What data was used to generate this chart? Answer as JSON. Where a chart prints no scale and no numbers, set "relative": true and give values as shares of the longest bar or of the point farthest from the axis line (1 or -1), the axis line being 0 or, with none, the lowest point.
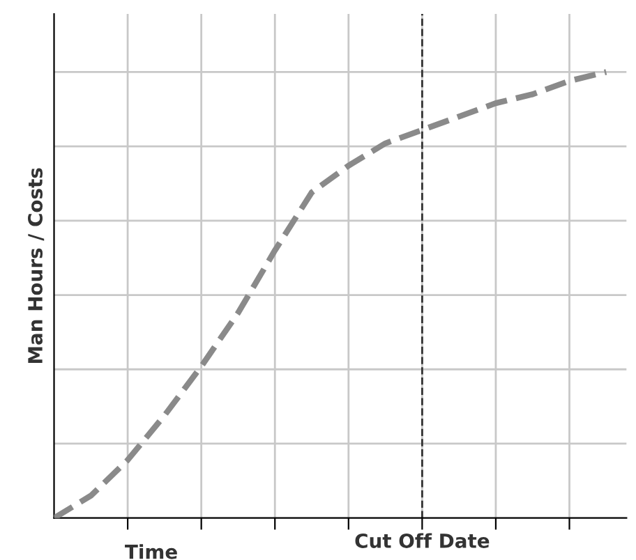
{
  "chart_data": {
    "type": "line",
    "xlabel": "Time",
    "ylabel": "Man Hours / Costs",
    "relative": true,
    "categories": [
      null,
      null,
      null,
      null,
      null,
      null,
      null,
      null,
      null,
      null,
      null,
      null,
      null,
      null,
      null,
      null
    ],
    "series": [
      {
        "color": "#8a8a8a",
        "values": [
          0,
          0.05,
          0.13,
          0.23,
          0.34,
          0.46,
          0.6,
          0.73,
          0.79,
          0.84,
          0.87,
          0.9,
          0.93,
          0.95,
          0.98,
          1
        ]
      }
    ],
    "annotations": [
      "Cut Off Date"
    ],
    "grid": true,
    "legend": false,
    "marker": "none",
    "line_style": "dashed"
  }
}
